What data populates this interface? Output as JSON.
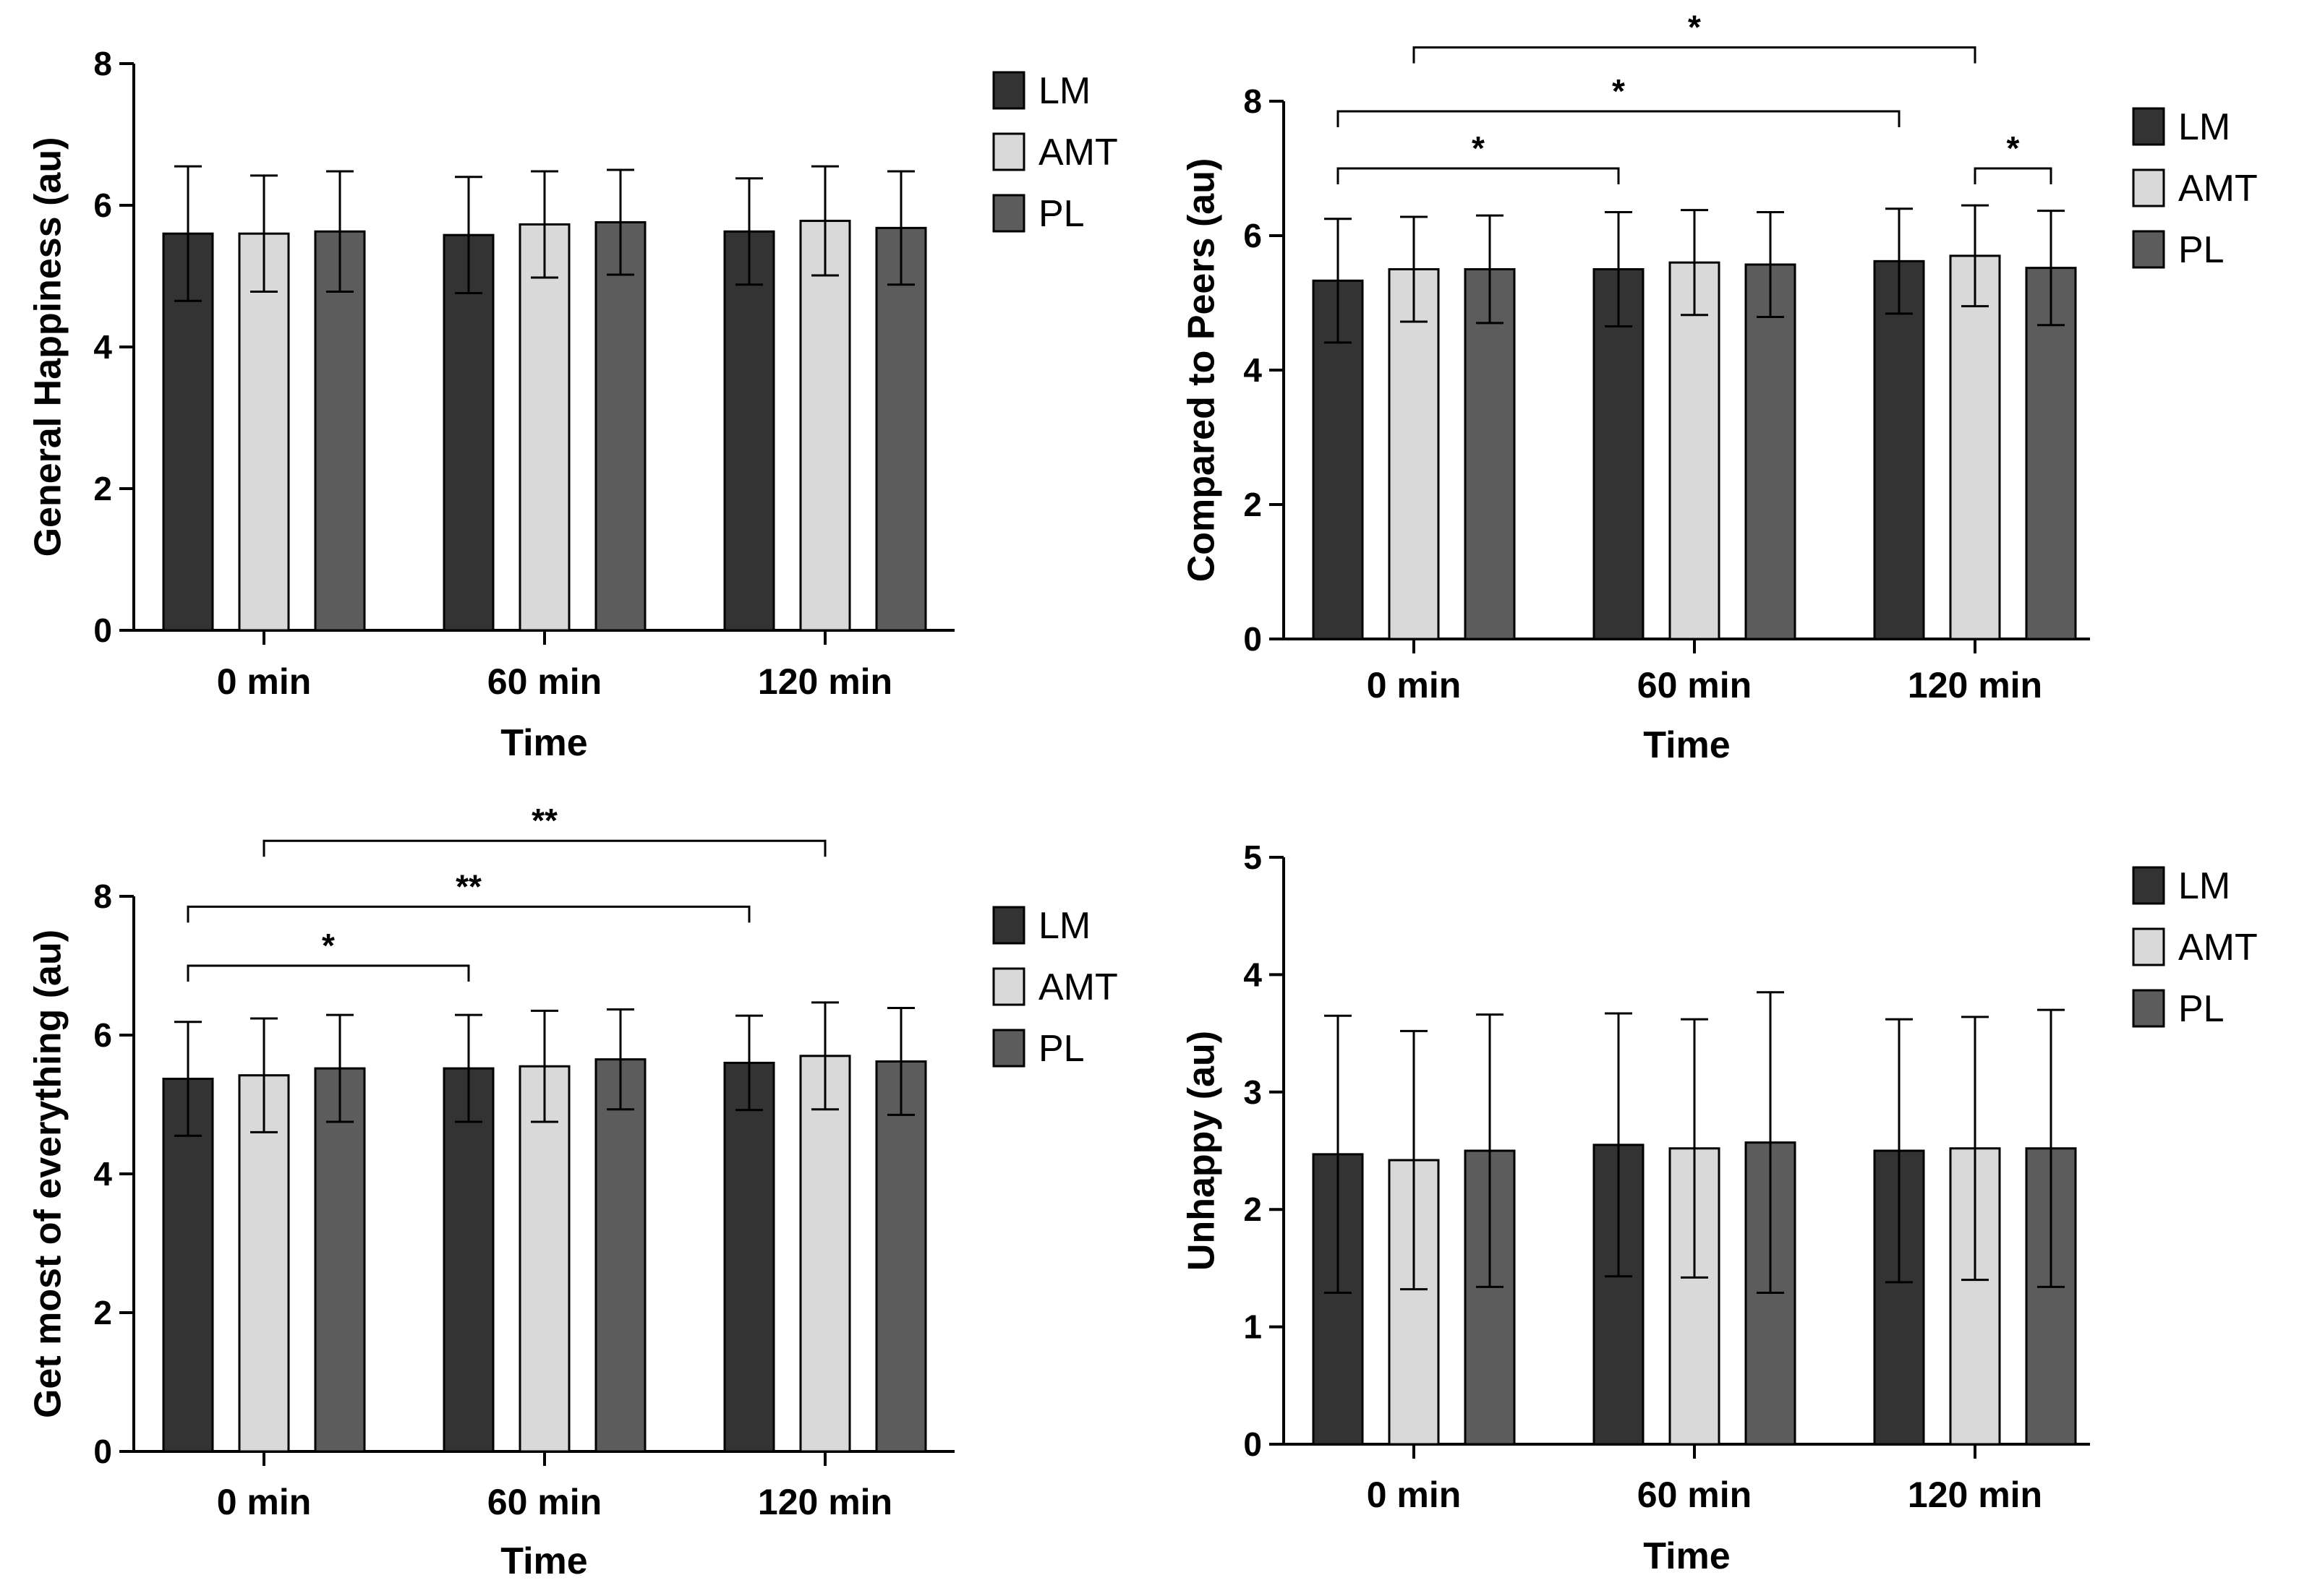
{
  "legend": [
    "LM",
    "AMT",
    "PL"
  ],
  "colors": {
    "LM": "#333333",
    "AMT": "#d9d9d9",
    "PL": "#5c5c5c"
  },
  "chart_data": [
    {
      "type": "bar",
      "title": "",
      "xlabel": "Time",
      "ylabel": "General Happiness (au)",
      "categories": [
        "0 min",
        "60 min",
        "120 min"
      ],
      "ylim": [
        0,
        8
      ],
      "yticks": [
        "0",
        "2",
        "4",
        "6",
        "8"
      ],
      "legend_position": "right",
      "series": [
        {
          "name": "LM",
          "values": [
            5.6,
            5.58,
            5.63
          ],
          "errors": [
            0.95,
            0.82,
            0.75
          ]
        },
        {
          "name": "AMT",
          "values": [
            5.6,
            5.73,
            5.78
          ],
          "errors": [
            0.82,
            0.75,
            0.77
          ]
        },
        {
          "name": "PL",
          "values": [
            5.63,
            5.76,
            5.68
          ],
          "errors": [
            0.85,
            0.74,
            0.8
          ]
        }
      ],
      "significance": []
    },
    {
      "type": "bar",
      "title": "",
      "xlabel": "Time",
      "ylabel": "Compared to Peers (au)",
      "categories": [
        "0 min",
        "60 min",
        "120 min"
      ],
      "ylim": [
        0,
        8
      ],
      "yticks": [
        "0",
        "2",
        "4",
        "6",
        "8"
      ],
      "legend_position": "right",
      "series": [
        {
          "name": "LM",
          "values": [
            5.33,
            5.5,
            5.62
          ],
          "errors": [
            0.92,
            0.85,
            0.78
          ]
        },
        {
          "name": "AMT",
          "values": [
            5.5,
            5.6,
            5.7
          ],
          "errors": [
            0.78,
            0.78,
            0.75
          ]
        },
        {
          "name": "PL",
          "values": [
            5.5,
            5.57,
            5.52
          ],
          "errors": [
            0.8,
            0.78,
            0.85
          ]
        }
      ],
      "significance": [
        {
          "from": [
            0,
            0
          ],
          "to": [
            1,
            0
          ],
          "level": 7.0,
          "label": "*"
        },
        {
          "from": [
            0,
            0
          ],
          "to": [
            2,
            0
          ],
          "level": 7.85,
          "label": "*"
        },
        {
          "from": [
            0,
            1
          ],
          "to": [
            2,
            1
          ],
          "level": 8.8,
          "label": "*"
        },
        {
          "from": [
            2,
            1
          ],
          "to": [
            2,
            2
          ],
          "level": 7.0,
          "label": "*"
        }
      ]
    },
    {
      "type": "bar",
      "title": "",
      "xlabel": "Time",
      "ylabel": "Get most of everything (au)",
      "categories": [
        "0 min",
        "60 min",
        "120 min"
      ],
      "ylim": [
        0,
        8
      ],
      "yticks": [
        "0",
        "2",
        "4",
        "6",
        "8"
      ],
      "legend_position": "right",
      "series": [
        {
          "name": "LM",
          "values": [
            5.37,
            5.52,
            5.6
          ],
          "errors": [
            0.82,
            0.77,
            0.68
          ]
        },
        {
          "name": "AMT",
          "values": [
            5.42,
            5.55,
            5.7
          ],
          "errors": [
            0.82,
            0.8,
            0.77
          ]
        },
        {
          "name": "PL",
          "values": [
            5.52,
            5.65,
            5.62
          ],
          "errors": [
            0.77,
            0.72,
            0.77
          ]
        }
      ],
      "significance": [
        {
          "from": [
            0,
            0
          ],
          "to": [
            1,
            0
          ],
          "level": 7.0,
          "label": "*"
        },
        {
          "from": [
            0,
            0
          ],
          "to": [
            2,
            0
          ],
          "level": 7.85,
          "label": "**"
        },
        {
          "from": [
            0,
            1
          ],
          "to": [
            2,
            1
          ],
          "level": 8.8,
          "label": "**"
        }
      ]
    },
    {
      "type": "bar",
      "title": "",
      "xlabel": "Time",
      "ylabel": "Unhappy (au)",
      "categories": [
        "0 min",
        "60 min",
        "120 min"
      ],
      "ylim": [
        0,
        5
      ],
      "yticks": [
        "0",
        "1",
        "2",
        "3",
        "4",
        "5"
      ],
      "legend_position": "right",
      "series": [
        {
          "name": "LM",
          "values": [
            2.47,
            2.55,
            2.5
          ],
          "errors": [
            1.18,
            1.12,
            1.12
          ]
        },
        {
          "name": "AMT",
          "values": [
            2.42,
            2.52,
            2.52
          ],
          "errors": [
            1.1,
            1.1,
            1.12
          ]
        },
        {
          "name": "PL",
          "values": [
            2.5,
            2.57,
            2.52
          ],
          "errors": [
            1.16,
            1.28,
            1.18
          ]
        }
      ],
      "significance": []
    }
  ]
}
